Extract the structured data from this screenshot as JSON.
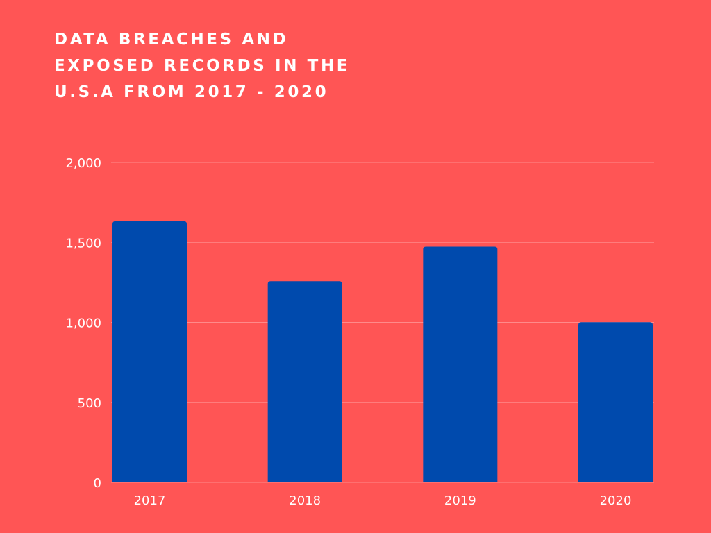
{
  "colors": {
    "background": "#ff5555",
    "bar": "#004aad",
    "text": "#ffffff",
    "gridline": "#ff8a8a"
  },
  "chart_data": {
    "type": "bar",
    "title_lines": [
      "DATA BREACHES AND",
      "EXPOSED RECORDS IN THE",
      "U.S.A FROM 2017 - 2020"
    ],
    "categories": [
      "2017",
      "2018",
      "2019",
      "2020"
    ],
    "values": [
      1632,
      1257,
      1473,
      1001
    ],
    "ylim": [
      0,
      2000
    ],
    "yticks": [
      0,
      500,
      1000,
      1500,
      2000
    ],
    "ytick_labels": [
      "0",
      "500",
      "1,000",
      "1,500",
      "2,000"
    ],
    "xlabel": "",
    "ylabel": "",
    "grid": true,
    "legend": false
  }
}
